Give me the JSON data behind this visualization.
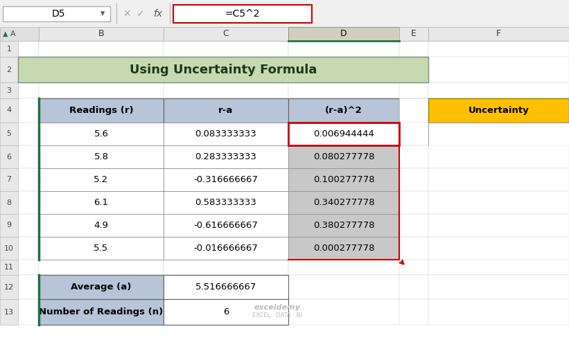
{
  "title": "Using Uncertainty Formula",
  "formula_bar_text": "=C5^2",
  "cell_ref": "D5",
  "header_row": [
    "Readings (r)",
    "r-a",
    "(r-a)^2"
  ],
  "data_rows": [
    [
      "5.6",
      "0.083333333",
      "0.006944444"
    ],
    [
      "5.8",
      "0.283333333",
      "0.080277778"
    ],
    [
      "5.2",
      "-0.316666667",
      "0.100277778"
    ],
    [
      "6.1",
      "0.583333333",
      "0.340277778"
    ],
    [
      "4.9",
      "-0.616666667",
      "0.380277778"
    ],
    [
      "5.5",
      "-0.016666667",
      "0.000277778"
    ]
  ],
  "summary_rows": [
    [
      "Average (a)",
      "5.516666667"
    ],
    [
      "Number of Readings (n)",
      "6"
    ]
  ],
  "uncertainty_label": "Uncertainty",
  "title_bg": "#c6d9b0",
  "header_bg": "#b8c4d8",
  "data_bg_white": "#ffffff",
  "data_bg_gray": "#c8c8c8",
  "uncertainty_bg": "#ffc000",
  "toolbar_bg": "#f0f0f0",
  "col_header_selected_bg": "#d0d0c0",
  "col_header_bg": "#e8e8e8",
  "row_header_bg": "#e8e8e8",
  "excel_green": "#1f7145",
  "red_border": "#cc0000",
  "sheet_bg": "#ffffff",
  "font_size_title": 13,
  "font_size_data": 9.5,
  "font_size_header": 9.5,
  "formula_font_size": 10
}
